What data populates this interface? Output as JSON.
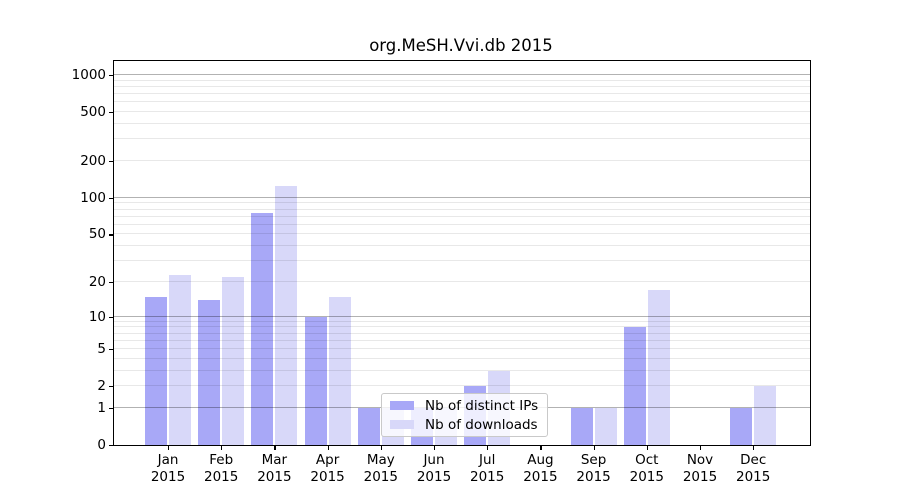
{
  "chart_data": {
    "type": "bar",
    "title": "org.MeSH.Vvi.db 2015",
    "categories": [
      "Jan 2015",
      "Feb 2015",
      "Mar 2015",
      "Apr 2015",
      "May 2015",
      "Jun 2015",
      "Jul 2015",
      "Aug 2015",
      "Sep 2015",
      "Oct 2015",
      "Nov 2015",
      "Dec 2015"
    ],
    "series": [
      {
        "name": "Nb of distinct IPs",
        "color": "#a8a8f7",
        "values": [
          15,
          14,
          75,
          10,
          1,
          1,
          2,
          0,
          1,
          8,
          0,
          1
        ]
      },
      {
        "name": "Nb of downloads",
        "color": "#d8d8f9",
        "values": [
          23,
          22,
          125,
          15,
          1,
          1,
          3,
          0,
          1,
          17,
          0,
          2
        ]
      }
    ],
    "xlabel": "",
    "ylabel": "",
    "yscale": "log10(1+x)",
    "yticks": [
      0,
      1,
      2,
      5,
      10,
      20,
      50,
      100,
      200,
      500,
      1000
    ],
    "gridlines": {
      "major": [
        1,
        10,
        100,
        1000
      ],
      "minor": [
        2,
        3,
        4,
        5,
        6,
        7,
        8,
        9,
        20,
        30,
        40,
        50,
        60,
        70,
        80,
        90,
        200,
        300,
        400,
        500,
        600,
        700,
        800,
        900
      ]
    },
    "grid": "on",
    "legend_position": "lower center",
    "colors": {
      "major_grid": "rgba(0,0,0,0.30)",
      "minor_grid": "rgba(0,0,0,0.09)",
      "axis": "#000000",
      "background": "#ffffff"
    }
  }
}
